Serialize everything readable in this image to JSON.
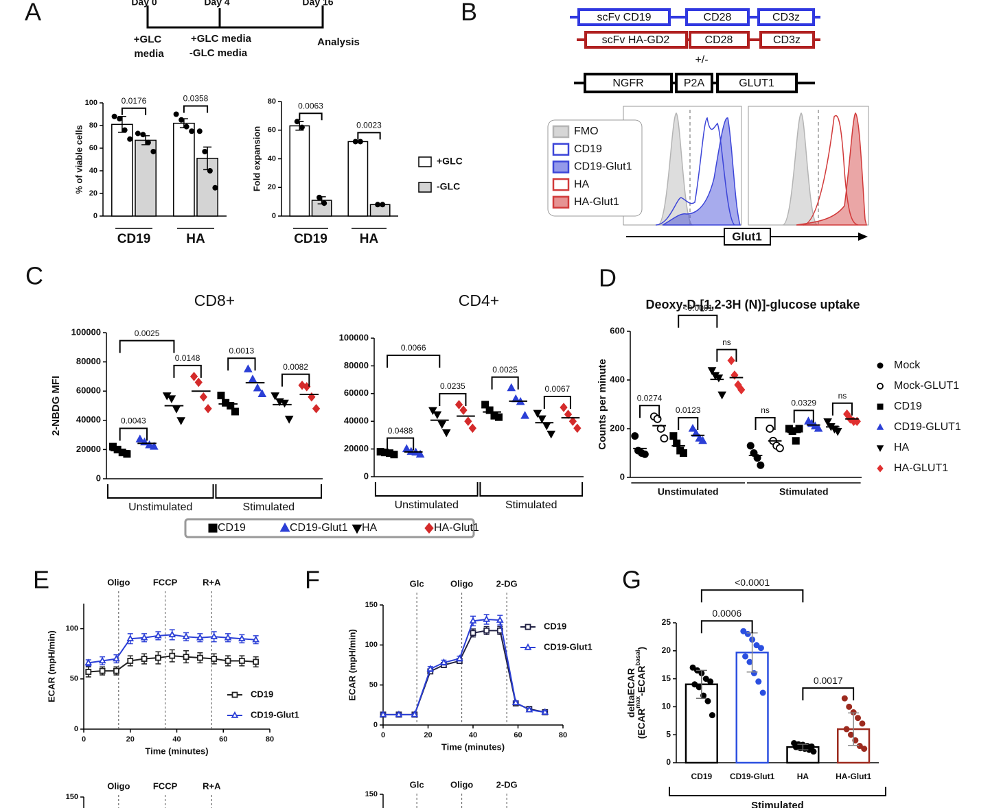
{
  "panels": [
    "A",
    "B",
    "C",
    "D",
    "E",
    "F",
    "G"
  ],
  "timeline": {
    "days": [
      "Day 0",
      "Day 4",
      "Day 16"
    ],
    "steps": [
      [
        "+GLC",
        "media"
      ],
      [
        "+GLC media",
        "-GLC media"
      ],
      [
        "Analysis"
      ]
    ]
  },
  "construct": {
    "car1": [
      "scFv CD19",
      "CD28",
      "CD3z"
    ],
    "car2": [
      "scFv HA-GD2",
      "CD28",
      "CD3z"
    ],
    "option": "+/-",
    "cassette": [
      "NGFR",
      "P2A",
      "GLUT1"
    ]
  },
  "flow": {
    "legend": [
      {
        "name": "FMO",
        "color": "#b4b4b4",
        "filled": true
      },
      {
        "name": "CD19",
        "color": "#3c45d8",
        "filled": false
      },
      {
        "name": "CD19-Glut1",
        "color": "#3c45d8",
        "filled": true
      },
      {
        "name": "HA",
        "color": "#d13a3a",
        "filled": false
      },
      {
        "name": "HA-Glut1",
        "color": "#d13a3a",
        "filled": true
      }
    ],
    "xlabel": "Glut1"
  },
  "lower_panels": [
    {
      "events": [
        "Oligo",
        "FCCP",
        "R+A"
      ],
      "ytick": 150
    },
    {
      "events": [
        "Glc",
        "Oligo",
        "2-DG"
      ],
      "ytick": 150
    }
  ],
  "chart_data": [
    {
      "type": "bar",
      "groups": [
        "CD19",
        "HA"
      ],
      "legend": "right",
      "subplots": [
        {
          "ylabel": "% of viable cells",
          "ylim": [
            0,
            100
          ],
          "yticks": [
            0,
            20,
            40,
            60,
            80,
            100
          ],
          "pvalues": [
            "0.0176",
            "0.0358"
          ]
        },
        {
          "ylabel": "Fold expansion",
          "ylim": [
            0,
            80
          ],
          "yticks": [
            0,
            20,
            40,
            60,
            80
          ],
          "pvalues": [
            "0.0063",
            "0.0023"
          ]
        }
      ],
      "series": [
        {
          "name": "+GLC",
          "color": "#ffffff",
          "values": [
            [
              81,
              82
            ],
            [
              63,
              52
            ]
          ],
          "error": [
            [
              7,
              4
            ],
            [
              3,
              0.5
            ]
          ],
          "points": [
            [
              [
                88,
                86,
                76,
                68
              ],
              [
                90,
                85,
                79,
                75
              ]
            ],
            [
              [
                66,
                62
              ],
              [
                52,
                52
              ]
            ]
          ]
        },
        {
          "name": "-GLC",
          "color": "#d4d4d4",
          "values": [
            [
              67,
              51
            ],
            [
              11,
              8
            ]
          ],
          "error": [
            [
              4,
              10
            ],
            [
              2.5,
              0.5
            ]
          ],
          "points": [
            [
              [
                73,
                72,
                65,
                57
              ],
              [
                75,
                57,
                40,
                25
              ]
            ],
            [
              [
                13,
                9
              ],
              [
                8,
                8
              ]
            ]
          ]
        }
      ]
    },
    {
      "type": "dot",
      "groups": [
        "Unstimulated",
        "Stimulated"
      ],
      "legend": "bottom",
      "subplots": [
        {
          "title": "CD8+",
          "ylabel": "2-NBDG MFI",
          "ylim": [
            0,
            100000
          ],
          "yticks": [
            0,
            20000,
            40000,
            60000,
            80000,
            100000
          ],
          "comparisons": [
            {
              "label": "0.0025",
              "group": "Unstimulated",
              "between": [
                "CD19",
                "HA"
              ]
            },
            {
              "label": "0.0043",
              "group": "Unstimulated",
              "between": [
                "CD19",
                "CD19-Glut1"
              ]
            },
            {
              "label": "0.0148",
              "group": "Unstimulated",
              "between": [
                "HA",
                "HA-Glut1"
              ]
            },
            {
              "label": "0.0013",
              "group": "Stimulated",
              "between": [
                "CD19",
                "CD19-Glut1"
              ]
            },
            {
              "label": "0.0082",
              "group": "Stimulated",
              "between": [
                "HA",
                "HA-Glut1"
              ]
            }
          ]
        },
        {
          "title": "CD4+",
          "ylim": [
            0,
            100000
          ],
          "yticks": [
            0,
            20000,
            40000,
            60000,
            80000,
            100000
          ],
          "comparisons": [
            {
              "label": "0.0066",
              "group": "Unstimulated",
              "between": [
                "CD19",
                "HA"
              ]
            },
            {
              "label": "0.0488",
              "group": "Unstimulated",
              "between": [
                "CD19",
                "CD19-Glut1"
              ]
            },
            {
              "label": "0.0235",
              "group": "Unstimulated",
              "between": [
                "HA",
                "HA-Glut1"
              ]
            },
            {
              "label": "0.0025",
              "group": "Stimulated",
              "between": [
                "CD19",
                "CD19-Glut1"
              ]
            },
            {
              "label": "0.0067",
              "group": "Stimulated",
              "between": [
                "HA",
                "HA-Glut1"
              ]
            }
          ]
        }
      ],
      "series": [
        {
          "name": "CD19",
          "color": "#000000",
          "marker": "square",
          "values": [
            [
              [
                22000,
                20000,
                18000,
                17000
              ],
              [
                57000,
                52000,
                50000,
                46000
              ]
            ],
            [
              [
                18000,
                17500,
                17000,
                16000
              ],
              [
                52000,
                48000,
                44000,
                43000
              ]
            ]
          ]
        },
        {
          "name": "CD19-Glut1",
          "color": "#2b3fd6",
          "marker": "triangle",
          "values": [
            [
              [
                27000,
                25000,
                23000,
                22000
              ],
              [
                75000,
                68000,
                62000,
                58000
              ]
            ],
            [
              [
                20000,
                18000,
                17500,
                16000
              ],
              [
                64000,
                56000,
                54000,
                44000
              ]
            ]
          ]
        },
        {
          "name": "HA",
          "color": "#000000",
          "marker": "triangle-down",
          "values": [
            [
              [
                57000,
                55000,
                48000,
                40000
              ],
              [
                57000,
                53000,
                52000,
                41000
              ]
            ],
            [
              [
                48000,
                45000,
                38000,
                32000
              ],
              [
                46000,
                42000,
                37000,
                31000
              ]
            ]
          ]
        },
        {
          "name": "HA-Glut1",
          "color": "#d42a2a",
          "marker": "diamond",
          "values": [
            [
              [
                70000,
                66000,
                56000,
                48000
              ],
              [
                64000,
                63000,
                56000,
                48000
              ]
            ],
            [
              [
                52000,
                48000,
                40000,
                35000
              ],
              [
                50000,
                45000,
                40000,
                35000
              ]
            ]
          ]
        }
      ]
    },
    {
      "type": "dot",
      "groups": [
        "Unstimulated",
        "Stimulated"
      ],
      "legend": "right",
      "subplots": [
        {
          "title": "Deoxy-D-[1,2-3H (N)]-glucose uptake",
          "ylabel": "Counts per minute",
          "ylim": [
            0,
            600
          ],
          "yticks": [
            0,
            200,
            400,
            600
          ],
          "comparisons": [
            {
              "label": "0.0274",
              "group": "Unstimulated",
              "between": [
                "Mock",
                "Mock-GLUT1"
              ]
            },
            {
              "label": "0.0123",
              "group": "Unstimulated",
              "between": [
                "CD19",
                "CD19-GLUT1"
              ]
            },
            {
              "label": "<0.0001",
              "group": "Unstimulated",
              "between": [
                "CD19",
                "HA"
              ]
            },
            {
              "label": "ns",
              "group": "Unstimulated",
              "between": [
                "HA",
                "HA-GLUT1"
              ]
            },
            {
              "label": "ns",
              "group": "Stimulated",
              "between": [
                "Mock",
                "Mock-GLUT1"
              ]
            },
            {
              "label": "0.0329",
              "group": "Stimulated",
              "between": [
                "CD19",
                "CD19-GLUT1"
              ]
            },
            {
              "label": "ns",
              "group": "Stimulated",
              "between": [
                "HA",
                "HA-GLUT1"
              ]
            }
          ]
        }
      ],
      "series": [
        {
          "name": "Mock",
          "color": "#000000",
          "marker": "circle",
          "values": [
            [
              [
                170,
                110,
                100,
                95
              ],
              [
                130,
                100,
                80,
                50
              ]
            ]
          ]
        },
        {
          "name": "Mock-GLUT1",
          "color": "#000000",
          "marker": "circle-open",
          "values": [
            [
              [
                250,
                240,
                200,
                160
              ],
              [
                200,
                150,
                130,
                120
              ]
            ]
          ]
        },
        {
          "name": "CD19",
          "color": "#000000",
          "marker": "square",
          "values": [
            [
              [
                170,
                140,
                110,
                100
              ],
              [
                200,
                190,
                150,
                200
              ]
            ]
          ]
        },
        {
          "name": "CD19-GLUT1",
          "color": "#2b3fd6",
          "marker": "triangle",
          "values": [
            [
              [
                200,
                180,
                160,
                150
              ],
              [
                230,
                220,
                210,
                200
              ]
            ]
          ]
        },
        {
          "name": "HA",
          "color": "#000000",
          "marker": "triangle-down",
          "values": [
            [
              [
                440,
                420,
                410,
                340
              ],
              [
                230,
                210,
                200,
                190
              ]
            ]
          ]
        },
        {
          "name": "HA-GLUT1",
          "color": "#e03030",
          "marker": "diamond",
          "values": [
            [
              [
                480,
                420,
                380,
                360
              ],
              [
                260,
                240,
                230,
                230
              ]
            ]
          ]
        }
      ]
    },
    {
      "type": "line",
      "ylabel": "ECAR (mpH/min)",
      "xlabel": "Time (minutes)",
      "xlim": [
        0,
        80
      ],
      "xticks": [
        0,
        20,
        40,
        60,
        80
      ],
      "ylim": [
        0,
        125
      ],
      "yticks": [
        0,
        50,
        100
      ],
      "legend": "lower right",
      "events": [
        {
          "x": 15,
          "label": "Oligo"
        },
        {
          "x": 35,
          "label": "FCCP"
        },
        {
          "x": 55,
          "label": "R+A"
        }
      ],
      "x": [
        2,
        8,
        14,
        20,
        26,
        32,
        38,
        44,
        50,
        56,
        62,
        68,
        74
      ],
      "series": [
        {
          "name": "CD19",
          "color": "#222222",
          "marker": "square-open",
          "values": [
            57,
            58,
            58,
            68,
            70,
            71,
            73,
            72,
            71,
            70,
            68,
            68,
            67
          ],
          "error": [
            5,
            4,
            4,
            5,
            5,
            6,
            6,
            6,
            5,
            5,
            5,
            5,
            5
          ]
        },
        {
          "name": "CD19-Glut1",
          "color": "#2b3fd6",
          "marker": "triangle-open",
          "values": [
            66,
            68,
            70,
            90,
            91,
            93,
            94,
            92,
            91,
            92,
            91,
            90,
            89
          ],
          "error": [
            3,
            4,
            4,
            5,
            4,
            4,
            5,
            4,
            4,
            5,
            4,
            4,
            4
          ]
        }
      ]
    },
    {
      "type": "line",
      "ylabel": "ECAR (mpH/min)",
      "xlabel": "Time (minutes)",
      "xlim": [
        0,
        80
      ],
      "xticks": [
        0,
        20,
        40,
        60,
        80
      ],
      "ylim": [
        0,
        150
      ],
      "yticks": [
        0,
        50,
        100,
        150
      ],
      "legend": "upper right",
      "events": [
        {
          "x": 15,
          "label": "Glc"
        },
        {
          "x": 35,
          "label": "Oligo"
        },
        {
          "x": 55,
          "label": "2-DG"
        }
      ],
      "x": [
        0,
        7,
        14,
        21,
        27,
        34,
        40,
        46,
        52,
        59,
        65,
        72
      ],
      "series": [
        {
          "name": "CD19",
          "color": "#222244",
          "marker": "square-open",
          "values": [
            13,
            13,
            13,
            67,
            75,
            80,
            115,
            118,
            118,
            27,
            20,
            16
          ],
          "error": [
            2,
            2,
            2,
            3,
            3,
            3,
            5,
            5,
            5,
            2,
            2,
            2
          ]
        },
        {
          "name": "CD19-Glut1",
          "color": "#2b3fd6",
          "marker": "triangle-open",
          "values": [
            13,
            13,
            13,
            70,
            78,
            83,
            130,
            132,
            131,
            28,
            19,
            16
          ],
          "error": [
            2,
            2,
            2,
            3,
            3,
            3,
            6,
            6,
            6,
            2,
            2,
            2
          ]
        }
      ]
    },
    {
      "type": "bar",
      "ylabel": "deltaECAR",
      "ylabel_parts": [
        "(ECAR",
        "max",
        "-ECAR",
        "basal",
        ")"
      ],
      "group": "Stimulated",
      "ylim": [
        0,
        25
      ],
      "yticks": [
        0,
        5,
        10,
        15,
        20,
        25
      ],
      "categories": [
        "CD19",
        "CD19-Glut1",
        "HA",
        "HA-Glut1"
      ],
      "colors": [
        "#000000",
        "#2b4fe0",
        "#000000",
        "#9c2a1e"
      ],
      "values": [
        14,
        19.7,
        2.8,
        6
      ],
      "error": [
        2.5,
        3.5,
        0.5,
        2.9
      ],
      "points": [
        [
          17,
          16.5,
          16,
          15,
          14.5,
          14,
          13.5,
          12,
          11,
          8.5
        ],
        [
          23.5,
          23,
          22,
          21,
          20.5,
          19,
          18,
          16,
          14.5,
          12.5
        ],
        [
          3.5,
          3.3,
          3.2,
          3,
          2.9,
          2.8,
          2.6,
          2.5,
          2.3,
          2
        ],
        [
          11.5,
          10,
          9,
          8,
          7,
          6,
          5,
          4,
          3,
          2.5
        ]
      ],
      "comparisons": [
        {
          "label": "<0.0001",
          "between": [
            "CD19",
            "HA"
          ]
        },
        {
          "label": "0.0006",
          "between": [
            "CD19",
            "CD19-Glut1"
          ]
        },
        {
          "label": "0.0017",
          "between": [
            "HA",
            "HA-Glut1"
          ]
        }
      ]
    }
  ]
}
